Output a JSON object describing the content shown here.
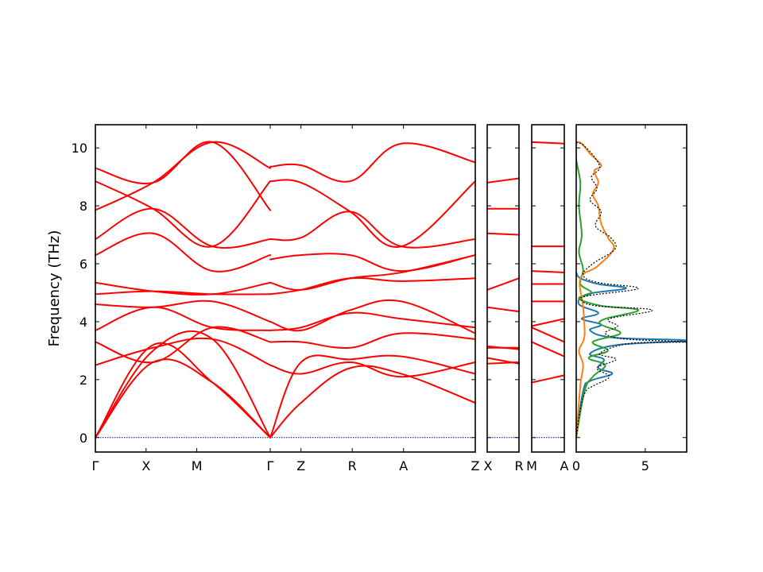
{
  "chart_data": {
    "type": "line",
    "title": "",
    "ylabel": "Frequency (THz)",
    "ylim": [
      -0.5,
      10.8
    ],
    "yticks": [
      0,
      2,
      4,
      6,
      8,
      10
    ],
    "colors": {
      "bands": "#ff0000",
      "zero_line": "#0000ff",
      "dos_total": "#000000",
      "dos_s1": "#1f77b4",
      "dos_s2": "#ff7f0e",
      "dos_s3": "#2ca02c"
    },
    "band_segments": [
      {
        "labels": [
          "Γ",
          "X",
          "M",
          "Γ"
        ],
        "bands": [
          {
            "x": [
              0,
              0.33,
              0.67,
              1.0
            ],
            "y": [
              0,
              2.6,
              1.9,
              0
            ]
          },
          {
            "x": [
              0,
              0.33,
              0.67,
              1.0
            ],
            "y": [
              0,
              3.0,
              3.4,
              0
            ]
          },
          {
            "x": [
              0,
              0.33,
              0.67,
              1.0
            ],
            "y": [
              0,
              3.2,
              1.9,
              0
            ]
          },
          {
            "x": [
              0,
              0.33,
              0.67,
              1.0
            ],
            "y": [
              2.5,
              3.1,
              3.4,
              2.5
            ]
          },
          {
            "x": [
              0,
              0.33,
              0.67,
              1.0
            ],
            "y": [
              3.3,
              2.6,
              3.8,
              3.3
            ]
          },
          {
            "x": [
              0,
              0.33,
              0.67,
              1.0
            ],
            "y": [
              3.7,
              4.5,
              3.8,
              3.7
            ]
          },
          {
            "x": [
              0,
              0.33,
              0.67,
              1.0
            ],
            "y": [
              4.6,
              4.5,
              4.7,
              4.0
            ]
          },
          {
            "x": [
              0,
              0.33,
              0.67,
              1.0
            ],
            "y": [
              4.95,
              5.05,
              4.95,
              4.95
            ]
          },
          {
            "x": [
              0,
              0.33,
              0.67,
              1.0
            ],
            "y": [
              5.35,
              5.05,
              4.95,
              5.35
            ]
          },
          {
            "x": [
              0,
              0.33,
              0.67,
              1.0
            ],
            "y": [
              6.3,
              7.05,
              5.75,
              6.3
            ]
          },
          {
            "x": [
              0,
              0.33,
              0.67,
              1.0
            ],
            "y": [
              6.85,
              7.9,
              6.6,
              6.85
            ]
          },
          {
            "x": [
              0,
              0.33,
              0.67,
              1.0
            ],
            "y": [
              7.85,
              8.8,
              10.2,
              9.3
            ]
          },
          {
            "x": [
              0,
              0.33,
              0.67,
              1.0
            ],
            "y": [
              8.85,
              7.9,
              6.6,
              8.85
            ]
          },
          {
            "x": [
              0,
              0.33,
              0.67,
              1.0
            ],
            "y": [
              9.3,
              8.8,
              10.2,
              7.85
            ]
          }
        ]
      },
      {
        "labels": [
          "Γ",
          "Z",
          "R",
          "A",
          "Z"
        ],
        "bands": [
          {
            "x": [
              0,
              0.15,
              0.39,
              0.64,
              1.0
            ],
            "y": [
              0,
              1.2,
              2.4,
              2.2,
              1.2
            ]
          },
          {
            "x": [
              0,
              0.15,
              0.39,
              0.64,
              1.0
            ],
            "y": [
              0,
              2.6,
              2.7,
              2.8,
              2.2
            ]
          },
          {
            "x": [
              0,
              0.15,
              0.39,
              0.64,
              1.0
            ],
            "y": [
              2.5,
              2.2,
              2.6,
              2.1,
              2.6
            ]
          },
          {
            "x": [
              0,
              0.15,
              0.39,
              0.64,
              1.0
            ],
            "y": [
              3.3,
              3.3,
              3.1,
              3.6,
              3.4
            ]
          },
          {
            "x": [
              0,
              0.15,
              0.39,
              0.64,
              1.0
            ],
            "y": [
              3.7,
              3.8,
              4.3,
              4.1,
              3.8
            ]
          },
          {
            "x": [
              0,
              0.15,
              0.39,
              0.64,
              1.0
            ],
            "y": [
              4.0,
              3.7,
              4.4,
              4.7,
              3.6
            ]
          },
          {
            "x": [
              0,
              0.15,
              0.39,
              0.64,
              1.0
            ],
            "y": [
              4.95,
              5.1,
              5.5,
              5.4,
              5.5
            ]
          },
          {
            "x": [
              0,
              0.15,
              0.39,
              0.64,
              1.0
            ],
            "y": [
              5.35,
              5.1,
              5.5,
              5.7,
              6.3
            ]
          },
          {
            "x": [
              0,
              0.15,
              0.39,
              0.64,
              1.0
            ],
            "y": [
              6.15,
              6.3,
              6.3,
              5.75,
              6.3
            ]
          },
          {
            "x": [
              0,
              0.15,
              0.39,
              0.64,
              1.0
            ],
            "y": [
              6.85,
              6.9,
              7.8,
              6.6,
              6.85
            ]
          },
          {
            "x": [
              0,
              0.15,
              0.39,
              0.64,
              1.0
            ],
            "y": [
              8.85,
              8.8,
              7.8,
              6.6,
              8.85
            ]
          },
          {
            "x": [
              0,
              0.15,
              0.39,
              0.64,
              1.0
            ],
            "y": [
              9.35,
              9.4,
              8.85,
              10.15,
              9.5
            ]
          }
        ]
      },
      {
        "labels": [
          "X",
          "R"
        ],
        "bands": [
          {
            "x": [
              0,
              1
            ],
            "y": [
              2.55,
              2.6
            ]
          },
          {
            "x": [
              0,
              1
            ],
            "y": [
              2.75,
              2.55
            ]
          },
          {
            "x": [
              0,
              1
            ],
            "y": [
              3.1,
              3.1
            ]
          },
          {
            "x": [
              0,
              1
            ],
            "y": [
              3.15,
              3.05
            ]
          },
          {
            "x": [
              0,
              1
            ],
            "y": [
              4.5,
              4.35
            ]
          },
          {
            "x": [
              0,
              1
            ],
            "y": [
              5.1,
              5.5
            ]
          },
          {
            "x": [
              0,
              1
            ],
            "y": [
              7.05,
              7.0
            ]
          },
          {
            "x": [
              0,
              1
            ],
            "y": [
              7.9,
              7.9
            ]
          },
          {
            "x": [
              0,
              1
            ],
            "y": [
              8.8,
              8.95
            ]
          }
        ]
      },
      {
        "labels": [
          "M",
          "A"
        ],
        "bands": [
          {
            "x": [
              0,
              1
            ],
            "y": [
              1.9,
              2.15
            ]
          },
          {
            "x": [
              0,
              1
            ],
            "y": [
              3.3,
              2.8
            ]
          },
          {
            "x": [
              0,
              1
            ],
            "y": [
              3.8,
              3.3
            ]
          },
          {
            "x": [
              0,
              1
            ],
            "y": [
              3.85,
              4.1
            ]
          },
          {
            "x": [
              0,
              1
            ],
            "y": [
              4.7,
              4.7
            ]
          },
          {
            "x": [
              0,
              1
            ],
            "y": [
              5.3,
              5.3
            ]
          },
          {
            "x": [
              0,
              1
            ],
            "y": [
              5.75,
              5.7
            ]
          },
          {
            "x": [
              0,
              1
            ],
            "y": [
              6.6,
              6.6
            ]
          },
          {
            "x": [
              0,
              1
            ],
            "y": [
              10.2,
              10.15
            ]
          }
        ]
      }
    ],
    "dos": {
      "xlim": [
        0,
        8
      ],
      "xticks": [
        0,
        5
      ],
      "grid": false,
      "series": [
        {
          "kind": "total",
          "points": [
            [
              0,
              0
            ],
            [
              0.3,
              1.0
            ],
            [
              0.7,
              1.6
            ],
            [
              1.3,
              1.8
            ],
            [
              2.4,
              2.1
            ],
            [
              1.5,
              2.4
            ],
            [
              2.9,
              2.7
            ],
            [
              1.7,
              2.9
            ],
            [
              3.9,
              3.25
            ],
            [
              8.0,
              3.3
            ],
            [
              3.6,
              3.4
            ],
            [
              2.1,
              3.6
            ],
            [
              3.0,
              3.85
            ],
            [
              2.4,
              4.1
            ],
            [
              5.5,
              4.4
            ],
            [
              1.4,
              4.55
            ],
            [
              0.4,
              4.75
            ],
            [
              0.9,
              4.9
            ],
            [
              4.5,
              5.15
            ],
            [
              1.6,
              5.35
            ],
            [
              0.5,
              5.6
            ],
            [
              1.2,
              6.0
            ],
            [
              2.8,
              6.5
            ],
            [
              2.5,
              6.9
            ],
            [
              1.4,
              7.3
            ],
            [
              1.8,
              7.8
            ],
            [
              1.0,
              8.2
            ],
            [
              1.5,
              8.6
            ],
            [
              1.1,
              9.0
            ],
            [
              1.7,
              9.3
            ],
            [
              1.3,
              9.7
            ],
            [
              0.5,
              10.1
            ],
            [
              0,
              10.2
            ]
          ]
        },
        {
          "kind": "partial",
          "points": [
            [
              0,
              0
            ],
            [
              0.5,
              1.6
            ],
            [
              1.0,
              1.95
            ],
            [
              2.6,
              2.2
            ],
            [
              1.6,
              2.4
            ],
            [
              2.0,
              2.7
            ],
            [
              1.0,
              2.9
            ],
            [
              3.0,
              3.2
            ],
            [
              8.0,
              3.35
            ],
            [
              2.7,
              3.45
            ],
            [
              1.0,
              3.7
            ],
            [
              1.8,
              3.9
            ],
            [
              0.4,
              4.1
            ],
            [
              1.6,
              4.3
            ],
            [
              0.2,
              4.6
            ],
            [
              0.8,
              4.95
            ],
            [
              3.6,
              5.15
            ],
            [
              1.6,
              5.3
            ],
            [
              0.3,
              5.5
            ],
            [
              0,
              5.7
            ]
          ]
        },
        {
          "kind": "partial",
          "points": [
            [
              0,
              0
            ],
            [
              0.3,
              1.8
            ],
            [
              0.5,
              2.5
            ],
            [
              0.2,
              3.0
            ],
            [
              0.6,
              3.5
            ],
            [
              0.5,
              4.5
            ],
            [
              0.3,
              5.5
            ],
            [
              1.5,
              5.9
            ],
            [
              2.7,
              6.5
            ],
            [
              2.3,
              6.9
            ],
            [
              1.8,
              7.4
            ],
            [
              1.6,
              8.0
            ],
            [
              1.2,
              8.4
            ],
            [
              1.6,
              8.8
            ],
            [
              1.3,
              9.2
            ],
            [
              1.8,
              9.4
            ],
            [
              1.0,
              9.8
            ],
            [
              0.4,
              10.15
            ],
            [
              0,
              10.2
            ]
          ]
        },
        {
          "kind": "partial",
          "points": [
            [
              0,
              0
            ],
            [
              0.6,
              1.6
            ],
            [
              1.2,
              2.1
            ],
            [
              2.1,
              2.5
            ],
            [
              0.9,
              2.75
            ],
            [
              2.3,
              3.0
            ],
            [
              1.2,
              3.3
            ],
            [
              3.2,
              3.6
            ],
            [
              1.8,
              3.9
            ],
            [
              2.1,
              4.1
            ],
            [
              4.5,
              4.4
            ],
            [
              1.8,
              4.55
            ],
            [
              0.2,
              4.8
            ],
            [
              1.1,
              5.0
            ],
            [
              0.3,
              5.3
            ],
            [
              0.5,
              5.8
            ],
            [
              0.2,
              6.4
            ],
            [
              0.4,
              7.0
            ],
            [
              0.2,
              8.0
            ],
            [
              0.3,
              8.8
            ],
            [
              0,
              9.6
            ],
            [
              0,
              10.2
            ]
          ]
        }
      ]
    }
  }
}
